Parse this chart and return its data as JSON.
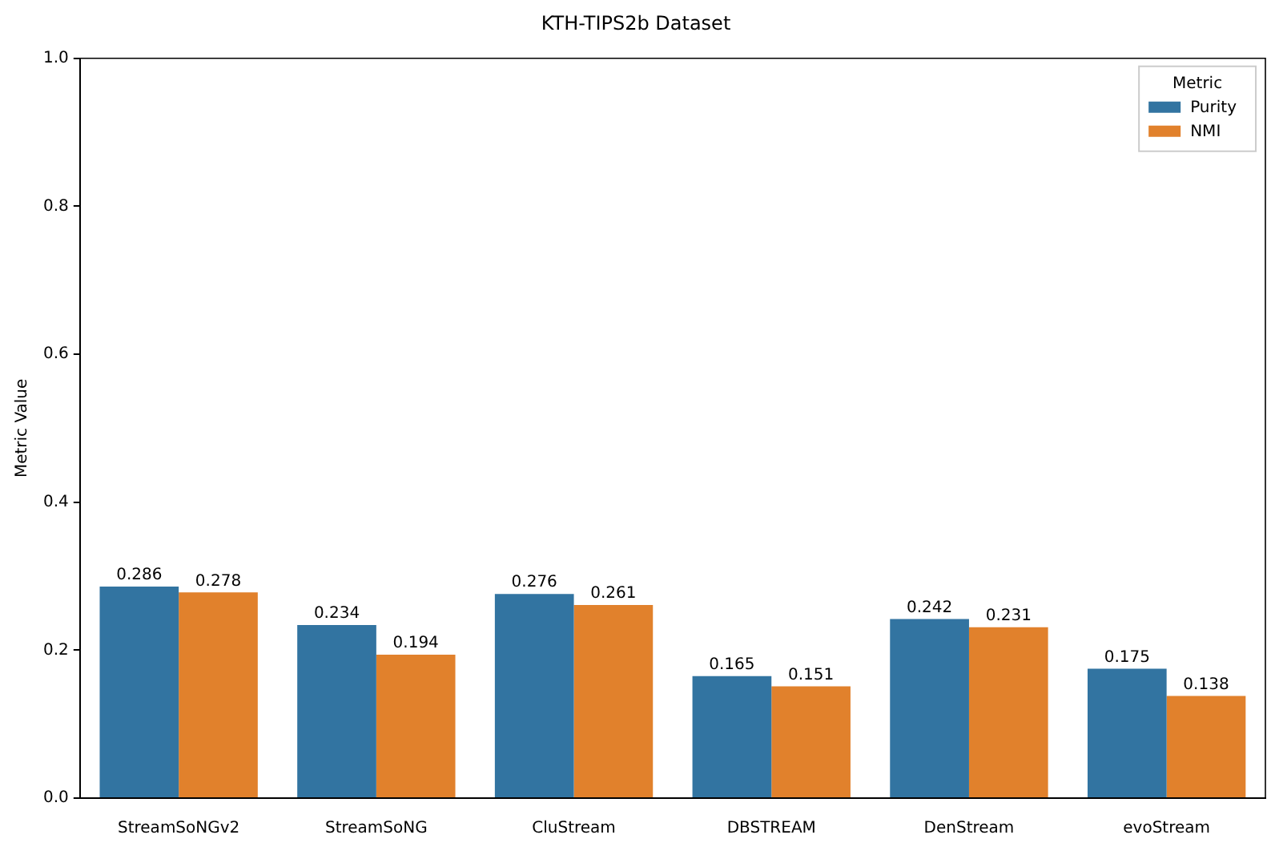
{
  "chart_data": {
    "type": "bar",
    "title": "KTH-TIPS2b Dataset",
    "ylabel": "Metric Value",
    "legend_title": "Metric",
    "categories": [
      "StreamSoNGv2",
      "StreamSoNG",
      "CluStream",
      "DBSTREAM",
      "DenStream",
      "evoStream"
    ],
    "series": [
      {
        "name": "Purity",
        "color": "#3274a1",
        "values": [
          0.286,
          0.234,
          0.276,
          0.165,
          0.242,
          0.175
        ]
      },
      {
        "name": "NMI",
        "color": "#e1812c",
        "values": [
          0.278,
          0.194,
          0.261,
          0.151,
          0.231,
          0.138
        ]
      }
    ],
    "ylim": [
      0,
      1
    ],
    "yticks": [
      {
        "value": 0,
        "label": "0.0"
      },
      {
        "value": 0.2,
        "label": "0.2"
      },
      {
        "value": 0.4,
        "label": "0.4"
      },
      {
        "value": 0.6,
        "label": "0.6"
      },
      {
        "value": 0.8,
        "label": "0.8"
      },
      {
        "value": 1,
        "label": "1.0"
      }
    ],
    "grid": false,
    "legend": "top right",
    "data_labels": true
  }
}
